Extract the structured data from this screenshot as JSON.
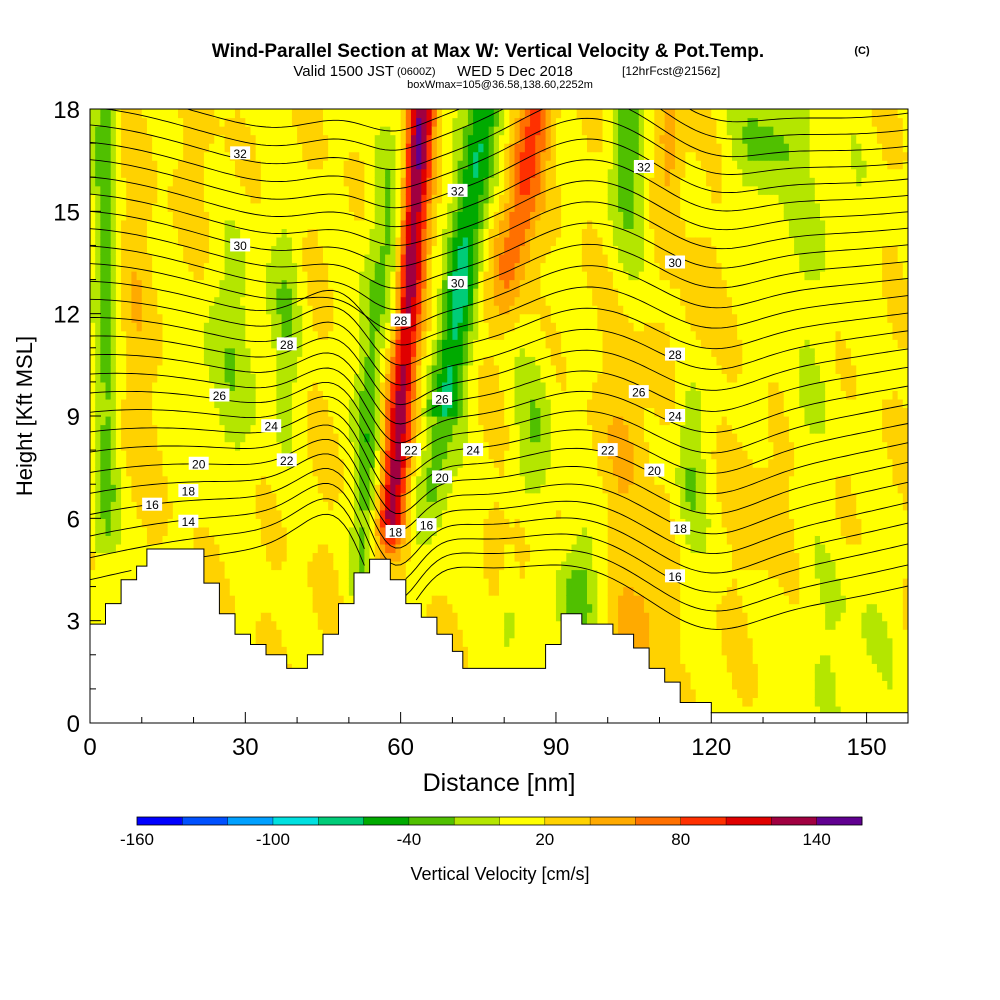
{
  "header": {
    "title": "Wind-Parallel Section at Max W: Vertical Velocity & Pot.Temp.",
    "copyright": "(C)",
    "valid_prefix": "Valid 1500 JST",
    "valid_zulu": "(0600Z)",
    "valid_date": "WED 5 Dec 2018",
    "forecast": "[12hrFcst@2156z]",
    "box_info": "boxWmax=105@36.58,138.60,2252m"
  },
  "chart_data": {
    "type": "heatmap",
    "title": "Wind-Parallel Section at Max W: Vertical Velocity & Pot.Temp.",
    "xlabel": "Distance [nm]",
    "ylabel": "Height [Kft MSL]",
    "xlim": [
      0,
      158
    ],
    "ylim": [
      0,
      18
    ],
    "x_ticks": [
      0,
      30,
      60,
      90,
      120,
      150
    ],
    "y_ticks": [
      0,
      3,
      6,
      9,
      12,
      15,
      18
    ],
    "colorbar": {
      "label": "Vertical Velocity [cm/s]",
      "tick_labels": [
        "-160",
        "-100",
        "-40",
        "20",
        "80",
        "140"
      ],
      "tick_values": [
        -160,
        -100,
        -40,
        20,
        80,
        140
      ],
      "bin_edges": [
        -160,
        -140,
        -120,
        -100,
        -80,
        -60,
        -40,
        -20,
        0,
        20,
        40,
        60,
        80,
        100,
        120,
        140,
        160
      ],
      "colors": [
        "#0000ff",
        "#0050ff",
        "#00a0ff",
        "#00e0e0",
        "#00cc78",
        "#00aa00",
        "#50c000",
        "#b4e600",
        "#ffff00",
        "#ffd200",
        "#ffaa00",
        "#ff7000",
        "#ff3000",
        "#e00000",
        "#a00040",
        "#600090"
      ]
    },
    "terrain": [
      [
        0,
        2.9
      ],
      [
        3,
        2.9
      ],
      [
        3,
        3.5
      ],
      [
        6,
        3.5
      ],
      [
        6,
        4.2
      ],
      [
        9,
        4.2
      ],
      [
        9,
        4.6
      ],
      [
        11,
        4.6
      ],
      [
        11,
        5.1
      ],
      [
        22,
        5.1
      ],
      [
        22,
        4.1
      ],
      [
        25,
        4.1
      ],
      [
        25,
        3.2
      ],
      [
        28,
        3.2
      ],
      [
        28,
        2.6
      ],
      [
        31,
        2.6
      ],
      [
        31,
        2.3
      ],
      [
        34,
        2.3
      ],
      [
        34,
        2.0
      ],
      [
        38,
        2.0
      ],
      [
        38,
        1.6
      ],
      [
        42,
        1.6
      ],
      [
        42,
        2.0
      ],
      [
        45,
        2.0
      ],
      [
        45,
        2.6
      ],
      [
        48,
        2.6
      ],
      [
        48,
        3.5
      ],
      [
        51,
        3.5
      ],
      [
        51,
        4.4
      ],
      [
        54,
        4.4
      ],
      [
        54,
        4.8
      ],
      [
        58,
        4.8
      ],
      [
        58,
        4.2
      ],
      [
        61,
        4.2
      ],
      [
        61,
        3.5
      ],
      [
        64,
        3.5
      ],
      [
        64,
        3.1
      ],
      [
        67,
        3.1
      ],
      [
        67,
        2.6
      ],
      [
        70,
        2.6
      ],
      [
        70,
        2.1
      ],
      [
        72,
        2.1
      ],
      [
        72,
        1.6
      ],
      [
        88,
        1.6
      ],
      [
        88,
        2.3
      ],
      [
        91,
        2.3
      ],
      [
        91,
        3.2
      ],
      [
        95,
        3.2
      ],
      [
        95,
        2.9
      ],
      [
        101,
        2.9
      ],
      [
        101,
        2.6
      ],
      [
        105,
        2.6
      ],
      [
        105,
        2.2
      ],
      [
        108,
        2.2
      ],
      [
        108,
        1.6
      ],
      [
        111,
        1.6
      ],
      [
        111,
        1.2
      ],
      [
        114,
        1.2
      ],
      [
        114,
        0.6
      ],
      [
        120,
        0.6
      ],
      [
        120,
        0.3
      ],
      [
        158,
        0.3
      ]
    ],
    "contour_labels": [
      {
        "x": 29,
        "y": 16.7,
        "text": "32"
      },
      {
        "x": 71,
        "y": 15.6,
        "text": "32"
      },
      {
        "x": 107,
        "y": 16.3,
        "text": "32"
      },
      {
        "x": 29,
        "y": 14.0,
        "text": "30"
      },
      {
        "x": 71,
        "y": 12.9,
        "text": "30"
      },
      {
        "x": 113,
        "y": 13.5,
        "text": "30"
      },
      {
        "x": 60,
        "y": 11.8,
        "text": "28"
      },
      {
        "x": 38,
        "y": 11.1,
        "text": "28"
      },
      {
        "x": 113,
        "y": 10.8,
        "text": "28"
      },
      {
        "x": 25,
        "y": 9.6,
        "text": "26"
      },
      {
        "x": 68,
        "y": 9.5,
        "text": "26"
      },
      {
        "x": 106,
        "y": 9.7,
        "text": "26"
      },
      {
        "x": 35,
        "y": 8.7,
        "text": "24"
      },
      {
        "x": 74,
        "y": 8.0,
        "text": "24"
      },
      {
        "x": 113,
        "y": 9.0,
        "text": "24"
      },
      {
        "x": 38,
        "y": 7.7,
        "text": "22"
      },
      {
        "x": 62,
        "y": 8.0,
        "text": "22"
      },
      {
        "x": 100,
        "y": 8.0,
        "text": "22"
      },
      {
        "x": 21,
        "y": 7.6,
        "text": "20"
      },
      {
        "x": 68,
        "y": 7.2,
        "text": "20"
      },
      {
        "x": 109,
        "y": 7.4,
        "text": "20"
      },
      {
        "x": 19,
        "y": 6.8,
        "text": "18"
      },
      {
        "x": 59,
        "y": 5.6,
        "text": "18"
      },
      {
        "x": 114,
        "y": 5.7,
        "text": "18"
      },
      {
        "x": 12,
        "y": 6.4,
        "text": "16"
      },
      {
        "x": 65,
        "y": 5.8,
        "text": "16"
      },
      {
        "x": 113,
        "y": 4.3,
        "text": "16"
      },
      {
        "x": 19,
        "y": 5.9,
        "text": "14"
      }
    ]
  }
}
